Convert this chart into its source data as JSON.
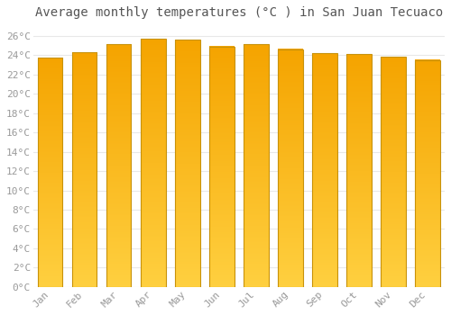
{
  "title": "Average monthly temperatures (°C ) in San Juan Tecuaco",
  "months": [
    "Jan",
    "Feb",
    "Mar",
    "Apr",
    "May",
    "Jun",
    "Jul",
    "Aug",
    "Sep",
    "Oct",
    "Nov",
    "Dec"
  ],
  "values": [
    23.7,
    24.3,
    25.1,
    25.7,
    25.6,
    24.9,
    25.1,
    24.6,
    24.2,
    24.1,
    23.8,
    23.5
  ],
  "bar_color_top": "#F5A400",
  "bar_color_bottom": "#FFD040",
  "bar_edge_color": "#C8920A",
  "background_color": "#ffffff",
  "plot_bg_color": "#ffffff",
  "grid_color": "#e8e8e8",
  "text_color": "#999999",
  "title_color": "#555555",
  "ylim": [
    0,
    27
  ],
  "yticks": [
    0,
    2,
    4,
    6,
    8,
    10,
    12,
    14,
    16,
    18,
    20,
    22,
    24,
    26
  ],
  "title_fontsize": 10,
  "tick_fontsize": 8
}
